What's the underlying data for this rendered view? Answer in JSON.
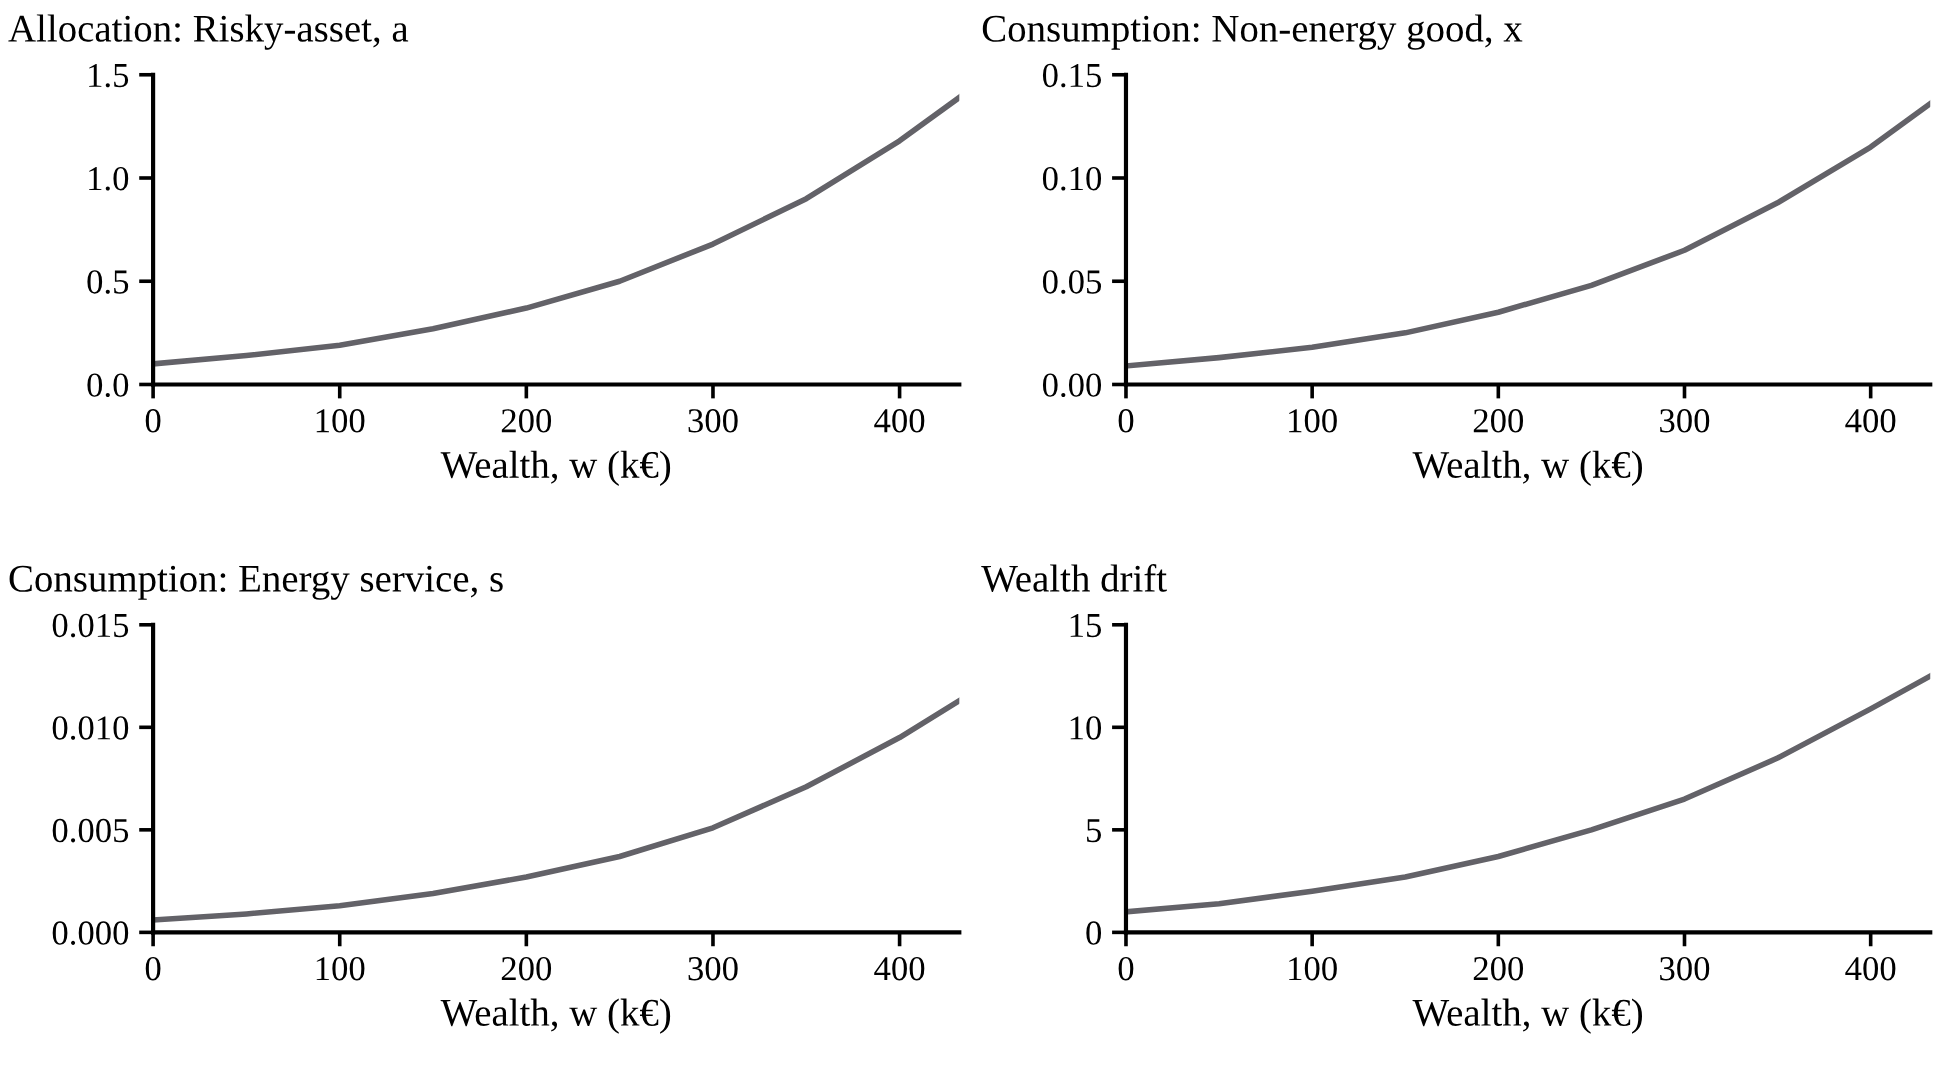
{
  "chart_data": [
    {
      "type": "line",
      "title": "Allocation: Risky-asset, a",
      "xlabel": "Wealth, w (k€)",
      "x": [
        0,
        50,
        100,
        150,
        200,
        250,
        300,
        350,
        400,
        432
      ],
      "series": [
        {
          "color": "#636268",
          "values": [
            0.1,
            0.14,
            0.19,
            0.27,
            0.37,
            0.5,
            0.68,
            0.9,
            1.18,
            1.39
          ]
        }
      ],
      "xlim": [
        0,
        432
      ],
      "xticks": [
        0,
        100,
        200,
        300,
        400
      ],
      "ylim": [
        0,
        1.5
      ],
      "yticks": [
        {
          "value": 0,
          "label": "0.0"
        },
        0.5,
        {
          "value": 1,
          "label": "1.0"
        },
        1.5
      ],
      "grid": false,
      "legend": false,
      "marker": "none",
      "line_style": "solid"
    },
    {
      "type": "line",
      "title": "Consumption: Non-energy good, x",
      "xlabel": "Wealth, w (k€)",
      "x": [
        0,
        50,
        100,
        150,
        200,
        250,
        300,
        350,
        400,
        432
      ],
      "series": [
        {
          "color": "#636268",
          "values": [
            0.009,
            0.013,
            0.018,
            0.025,
            0.035,
            0.048,
            0.065,
            0.088,
            0.115,
            0.136
          ]
        }
      ],
      "xlim": [
        0,
        432
      ],
      "xticks": [
        0,
        100,
        200,
        300,
        400
      ],
      "ylim": [
        0,
        0.15
      ],
      "yticks": [
        {
          "value": 0,
          "label": "0.00"
        },
        0.05,
        {
          "value": 0.1,
          "label": "0.10"
        },
        0.15
      ],
      "grid": false,
      "legend": false,
      "marker": "none",
      "line_style": "solid"
    },
    {
      "type": "line",
      "title": "Consumption: Energy service, s",
      "xlabel": "Wealth, w (k€)",
      "x": [
        0,
        50,
        100,
        150,
        200,
        250,
        300,
        350,
        400,
        432
      ],
      "series": [
        {
          "color": "#636268",
          "values": [
            0.0006,
            0.0009,
            0.0013,
            0.0019,
            0.0027,
            0.0037,
            0.0051,
            0.0071,
            0.0095,
            0.0113
          ]
        }
      ],
      "xlim": [
        0,
        432
      ],
      "xticks": [
        0,
        100,
        200,
        300,
        400
      ],
      "ylim": [
        0,
        0.015
      ],
      "yticks": [
        {
          "value": 0,
          "label": "0.000"
        },
        0.005,
        {
          "value": 0.01,
          "label": "0.010"
        },
        0.015
      ],
      "grid": false,
      "legend": false,
      "marker": "none",
      "line_style": "solid"
    },
    {
      "type": "line",
      "title": "Wealth drift",
      "xlabel": "Wealth, w (k€)",
      "x": [
        0,
        50,
        100,
        150,
        200,
        250,
        300,
        350,
        400,
        432
      ],
      "series": [
        {
          "color": "#636268",
          "values": [
            1.0,
            1.4,
            2.0,
            2.7,
            3.7,
            5.0,
            6.5,
            8.5,
            10.9,
            12.5
          ]
        }
      ],
      "xlim": [
        0,
        432
      ],
      "xticks": [
        0,
        100,
        200,
        300,
        400
      ],
      "ylim": [
        0,
        15
      ],
      "yticks": [
        0,
        5,
        10,
        15
      ],
      "grid": false,
      "legend": false,
      "marker": "none",
      "line_style": "solid"
    }
  ]
}
